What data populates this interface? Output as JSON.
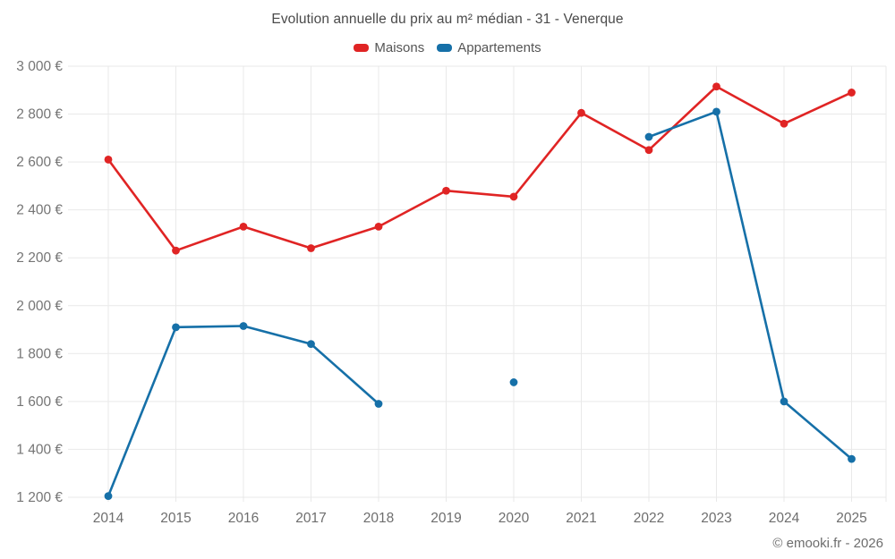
{
  "header": {
    "title": "Evolution annuelle du prix au m² médian - 31 - Venerque"
  },
  "legend": {
    "items": [
      {
        "label": "Maisons",
        "color": "#e02424"
      },
      {
        "label": "Appartements",
        "color": "#1670a8"
      }
    ]
  },
  "footer": {
    "credit": "© emooki.fr - 2026"
  },
  "chart_data": {
    "type": "line",
    "title": "Evolution annuelle du prix au m² médian - 31 - Venerque",
    "categories": [
      2014,
      2015,
      2016,
      2017,
      2018,
      2019,
      2020,
      2021,
      2022,
      2023,
      2024,
      2025
    ],
    "series": [
      {
        "name": "Maisons",
        "color": "#e02424",
        "values": [
          2610,
          2230,
          2330,
          2240,
          2330,
          2480,
          2455,
          2805,
          2650,
          2915,
          2760,
          2890
        ]
      },
      {
        "name": "Appartements",
        "color": "#1670a8",
        "values": [
          1205,
          1910,
          1915,
          1840,
          1590,
          null,
          1680,
          null,
          2705,
          2810,
          1600,
          1360
        ]
      }
    ],
    "xlabel": "",
    "ylabel": "",
    "ylim": [
      1200,
      3000
    ],
    "ytick_step": 200,
    "ytick_suffix": " €",
    "grid": true,
    "legend_position": "top",
    "gap_years": [
      2019,
      2021
    ],
    "footer": "© emooki.fr - 2026"
  }
}
